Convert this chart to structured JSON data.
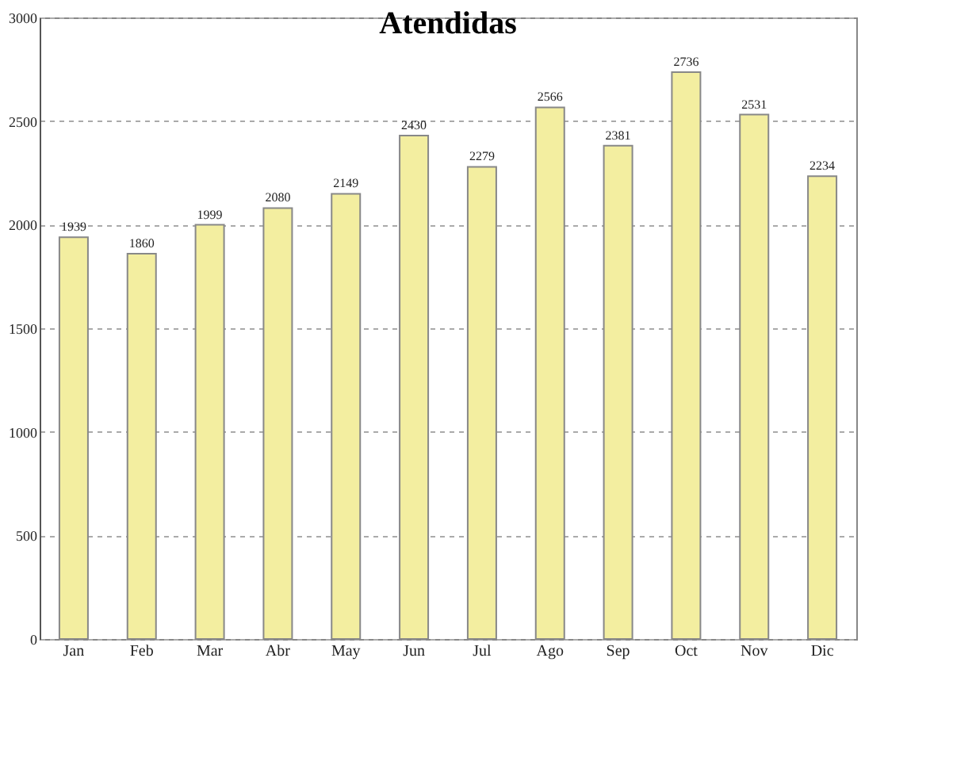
{
  "chart_data": {
    "type": "bar",
    "title": "Atendidas",
    "categories": [
      "Jan",
      "Feb",
      "Mar",
      "Abr",
      "May",
      "Jun",
      "Jul",
      "Ago",
      "Sep",
      "Oct",
      "Nov",
      "Dic"
    ],
    "values": [
      1939,
      1860,
      1999,
      2080,
      2149,
      2430,
      2279,
      2566,
      2381,
      2736,
      2531,
      2234
    ],
    "color": "#f3eea0",
    "ylim": [
      0,
      3000
    ],
    "yticks": [
      0,
      500,
      1000,
      1500,
      2000,
      2500,
      3000
    ],
    "grid": "y",
    "data_labels": true
  }
}
